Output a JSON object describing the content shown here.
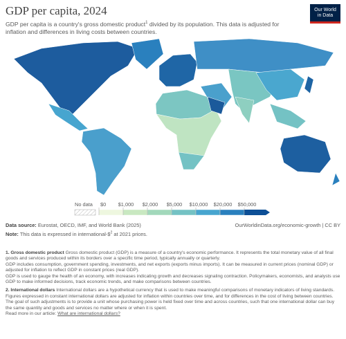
{
  "header": {
    "title": "GDP per capita, 2024",
    "subtitle": [
      "GDP per capita is a country's gross domestic product",
      "1",
      " divided by its population. This data is adjusted for inflation and differences in living costs between countries."
    ],
    "logo": [
      "Our World",
      "in Data"
    ]
  },
  "legend": {
    "no_data": "No data",
    "labels": [
      "$0",
      "$1,000",
      "$2,000",
      "$5,000",
      "$10,000",
      "$20,000",
      "$50,000"
    ],
    "colors": [
      "#eef7df",
      "#c9e8c1",
      "#a2d8bb",
      "#74c2c4",
      "#47a5cf",
      "#2a80be",
      "#0d4f96"
    ]
  },
  "footer": {
    "source_label": "Data source:",
    "source": "Eurostat, OECD, IMF, and World Bank (2025)",
    "url": "OurWorldinData.org/economic-growth | CC BY",
    "note_label": "Note:",
    "note": [
      "This data is expressed in international-$",
      "2",
      " at 2021 prices."
    ]
  },
  "footnotes": [
    {
      "heading": "1. Gross domestic product",
      "paragraphs": [
        "Gross domestic product (GDP) is a measure of a country's economic performance. It represents the total monetary value of all final goods and services produced within its borders over a specific time period, typically annually or quarterly.",
        "GDP includes consumption, government spending, investments, and net exports (exports minus imports). It can be measured in current prices (nominal GDP) or adjusted for inflation to reflect GDP in constant prices (real GDP).",
        "GDP is used to gauge the health of an economy, with increases indicating growth and decreases signaling contraction. Policymakers, economists, and analysts use GDP to make informed decisions, track economic trends, and make comparisons between countries."
      ]
    },
    {
      "heading": "2. International dollars",
      "paragraphs": [
        "International dollars are a hypothetical currency that is used to make meaningful comparisons of monetary indicators of living standards.",
        "Figures expressed in constant international dollars are adjusted for inflation within countries over time, and for differences in the cost of living between countries.",
        "The goal of such adjustments is to provide a unit whose purchasing power is held fixed over time and across countries, such that one international dollar can buy the same quantity and goods and services no matter where or when it is spent."
      ],
      "read_more": "Read more in our article:",
      "link": "What are international dollars?"
    }
  ]
}
